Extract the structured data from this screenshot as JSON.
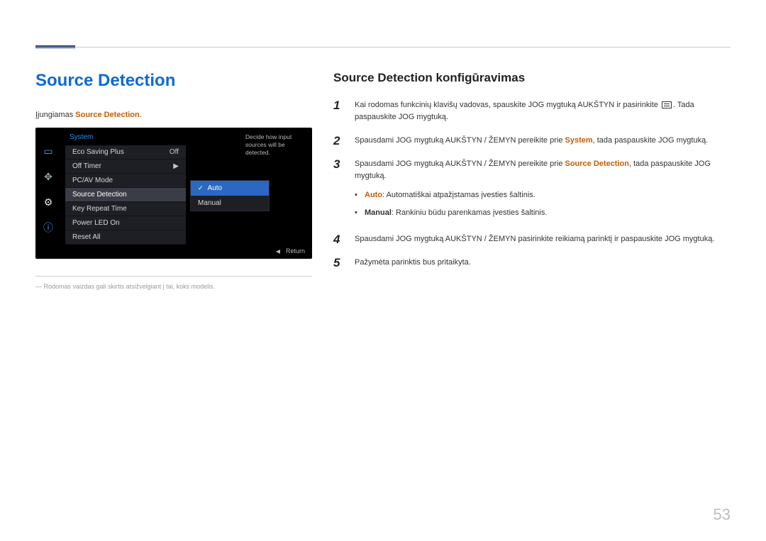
{
  "page_number": "53",
  "main_heading": "Source Detection",
  "intro": {
    "prefix": "Įjungiamas ",
    "em": "Source Detection",
    "suffix": "."
  },
  "osd": {
    "title": "System",
    "help_text": "Decide how input sources will be detected.",
    "rows": [
      {
        "label": "Eco Saving Plus",
        "value": "Off",
        "selected": false
      },
      {
        "label": "Off Timer",
        "value": "▶",
        "selected": false
      },
      {
        "label": "PC/AV Mode",
        "value": "",
        "selected": false
      },
      {
        "label": "Source Detection",
        "value": "",
        "selected": true
      },
      {
        "label": "Key Repeat Time",
        "value": "",
        "selected": false
      },
      {
        "label": "Power LED On",
        "value": "",
        "selected": false
      },
      {
        "label": "Reset All",
        "value": "",
        "selected": false
      }
    ],
    "submenu": [
      {
        "label": "Auto",
        "active": true
      },
      {
        "label": "Manual",
        "active": false
      }
    ],
    "footer_return": "Return"
  },
  "footnote": "Rodomas vaizdas gali skirtis atsižvelgiant į tai, koks modelis.",
  "sub_heading": "Source Detection konfigūravimas",
  "steps": {
    "s1a": "Kai rodomas funkcinių klavišų vadovas, spauskite JOG mygtuką AUKŠTYN ir pasirinkite ",
    "s1b": ". Tada paspauskite JOG mygtuką.",
    "s2a": "Spausdami JOG mygtuką AUKŠTYN / ŽEMYN pereikite prie ",
    "s2em": "System",
    "s2b": ", tada paspauskite JOG mygtuką.",
    "s3a": "Spausdami JOG mygtuką AUKŠTYN / ŽEMYN pereikite prie ",
    "s3em": "Source Detection",
    "s3b": ", tada paspauskite JOG mygtuką.",
    "bullets": [
      {
        "label": "Auto",
        "text": ": Automatiškai atpažįstamas įvesties šaltinis."
      },
      {
        "label": "Manual",
        "text": ": Rankiniu būdu parenkamas įvesties šaltinis."
      }
    ],
    "s4": "Spausdami JOG mygtuką AUKŠTYN / ŽEMYN pasirinkite reikiamą parinktį ir paspauskite JOG mygtuką.",
    "s5": "Pažymėta parinktis bus pritaikyta."
  }
}
